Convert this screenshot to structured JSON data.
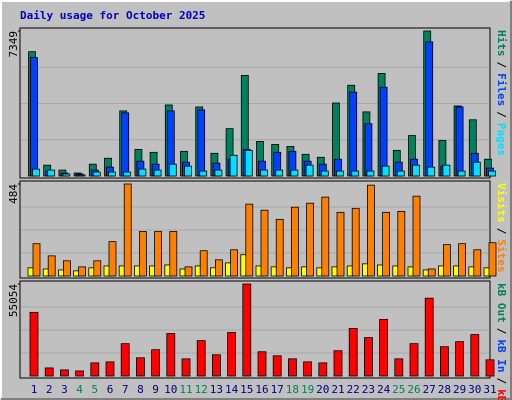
{
  "chart_data": {
    "type": "bar",
    "title": "Daily usage for October 2025",
    "categories": [
      "1",
      "2",
      "3",
      "4",
      "5",
      "6",
      "7",
      "8",
      "9",
      "10",
      "11",
      "12",
      "13",
      "14",
      "15",
      "16",
      "17",
      "18",
      "19",
      "20",
      "21",
      "22",
      "23",
      "24",
      "25",
      "26",
      "27",
      "28",
      "29",
      "30",
      "31"
    ],
    "label_colors": [
      "#000080",
      "#000080",
      "#000080",
      "#00805c",
      "#00805c",
      "#000080",
      "#000080",
      "#000080",
      "#000080",
      "#000080",
      "#00805c",
      "#00805c",
      "#000080",
      "#000080",
      "#000080",
      "#000080",
      "#000080",
      "#00805c",
      "#00805c",
      "#000080",
      "#000080",
      "#000080",
      "#000080",
      "#000080",
      "#00805c",
      "#00805c",
      "#000080",
      "#000080",
      "#000080",
      "#000080",
      "#000080"
    ],
    "legend_separator": "/",
    "panels": [
      {
        "ylim": [
          0,
          7349
        ],
        "yticks": [
          7349
        ],
        "series": [
          {
            "name": "Hits",
            "color": "#00805c",
            "values": [
              6299,
              550,
              300,
              150,
              600,
              900,
              3300,
              1350,
              1200,
              3600,
              1250,
              3500,
              1150,
              2400,
              5100,
              1750,
              1600,
              1500,
              1100,
              950,
              3700,
              4600,
              3250,
              5200,
              1300,
              2050,
              7349,
              1800,
              3550,
              2850,
              850
            ]
          },
          {
            "name": "Files",
            "color": "#0040ff",
            "values": [
              6000,
              250,
              150,
              100,
              300,
              450,
              3200,
              750,
              600,
              3300,
              700,
              3350,
              650,
              850,
              1350,
              750,
              1200,
              1250,
              750,
              600,
              850,
              4250,
              2650,
              4500,
              700,
              850,
              6800,
              500,
              3500,
              1150,
              400
            ]
          },
          {
            "name": "Pages",
            "color": "#00e0ff",
            "values": [
              350,
              300,
              100,
              50,
              200,
              200,
              200,
              350,
              300,
              600,
              500,
              250,
              300,
              1050,
              1300,
              300,
              300,
              300,
              550,
              250,
              250,
              250,
              250,
              500,
              250,
              550,
              450,
              550,
              250,
              700,
              250
            ]
          }
        ]
      },
      {
        "ylim": [
          0,
          484
        ],
        "yticks": [
          484
        ],
        "series": [
          {
            "name": "Visits",
            "color": "#ffff00",
            "values": [
              43,
              37,
              32,
              27,
              43,
              53,
              53,
              53,
              53,
              58,
              37,
              53,
              43,
              69,
              112,
              53,
              48,
              43,
              48,
              43,
              48,
              53,
              64,
              58,
              53,
              48,
              32,
              53,
              53,
              48,
              43
            ]
          },
          {
            "name": "Sites",
            "color": "#ff8000",
            "values": [
              170,
              106,
              80,
              48,
              80,
              181,
              484,
              234,
              234,
              234,
              48,
              133,
              85,
              138,
              378,
              346,
              298,
              362,
              383,
              415,
              335,
              356,
              478,
              335,
              340,
              420,
              37,
              165,
              170,
              138,
              175
            ]
          }
        ]
      },
      {
        "ylim": [
          0,
          55054
        ],
        "yticks": [
          55054
        ],
        "series": [
          {
            "name": "kB Out",
            "color": "#00805c"
          },
          {
            "name": "kB In",
            "color": "#0040ff"
          },
          {
            "name": "kB F",
            "color": "#ff0000",
            "values": [
              38100,
              4840,
              3630,
              3020,
              7860,
              8470,
              19360,
              10890,
              15730,
              25410,
              10280,
              21170,
              12700,
              26010,
              55054,
              14520,
              12100,
              10280,
              8470,
              7860,
              15120,
              28430,
              22990,
              33880,
              10280,
              19360,
              46580,
              17540,
              20570,
              24800,
              9680
            ]
          }
        ]
      }
    ]
  }
}
